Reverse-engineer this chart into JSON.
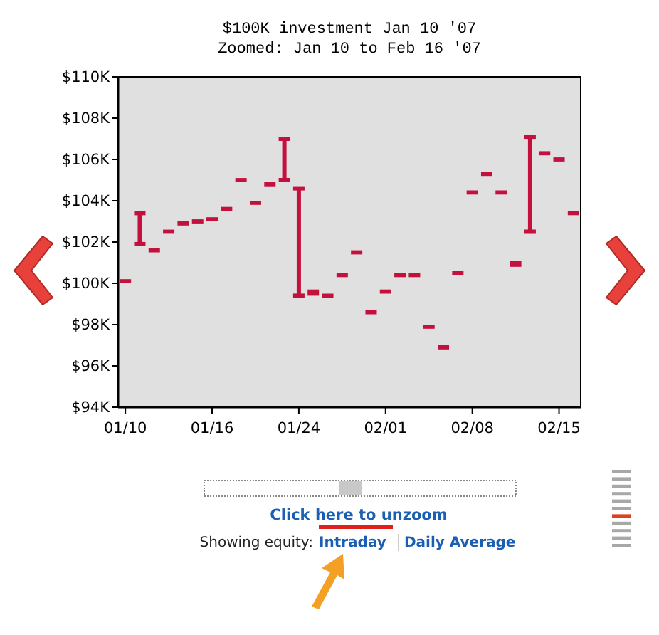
{
  "chart_data": {
    "type": "bar",
    "title": "$100K investment Jan 10 '07",
    "subtitle": "Zoomed: Jan 10 to Feb 16 '07",
    "categories": [
      "01/10",
      null,
      null,
      null,
      null,
      null,
      "01/16",
      null,
      null,
      null,
      null,
      null,
      "01/24",
      null,
      null,
      null,
      null,
      null,
      "02/01",
      null,
      null,
      null,
      null,
      null,
      "02/08",
      null,
      null,
      null,
      null,
      null,
      "02/15",
      null
    ],
    "base": [
      100000,
      101900,
      101500,
      102400,
      102800,
      102900,
      103000,
      103500,
      104900,
      103800,
      104700,
      105000,
      99400,
      99400,
      99300,
      100300,
      101400,
      98500,
      99500,
      100300,
      100300,
      97800,
      96800,
      100400,
      104300,
      105200,
      104300,
      100800,
      102500,
      106200,
      105900,
      103300
    ],
    "values": [
      200,
      1500,
      200,
      200,
      200,
      200,
      200,
      200,
      200,
      200,
      200,
      2000,
      5200,
      300,
      200,
      200,
      200,
      200,
      200,
      200,
      200,
      200,
      200,
      200,
      200,
      200,
      200,
      300,
      4600,
      200,
      200,
      200
    ],
    "color": "#c4103c",
    "ylim": [
      94000,
      110000
    ],
    "yticks": [
      {
        "value": 94000,
        "label": "$94K"
      },
      {
        "value": 96000,
        "label": "$96K"
      },
      {
        "value": 98000,
        "label": "$98K"
      },
      {
        "value": 100000,
        "label": "$100K"
      },
      {
        "value": 102000,
        "label": "$102K"
      },
      {
        "value": 104000,
        "label": "$104K"
      },
      {
        "value": 106000,
        "label": "$106K"
      },
      {
        "value": 108000,
        "label": "$108K"
      },
      {
        "value": 110000,
        "label": "$110K"
      }
    ],
    "grid": false,
    "annotations": [
      "Click here to unzoom",
      "Showing equity:",
      "Intraday",
      "Daily Average"
    ]
  }
}
